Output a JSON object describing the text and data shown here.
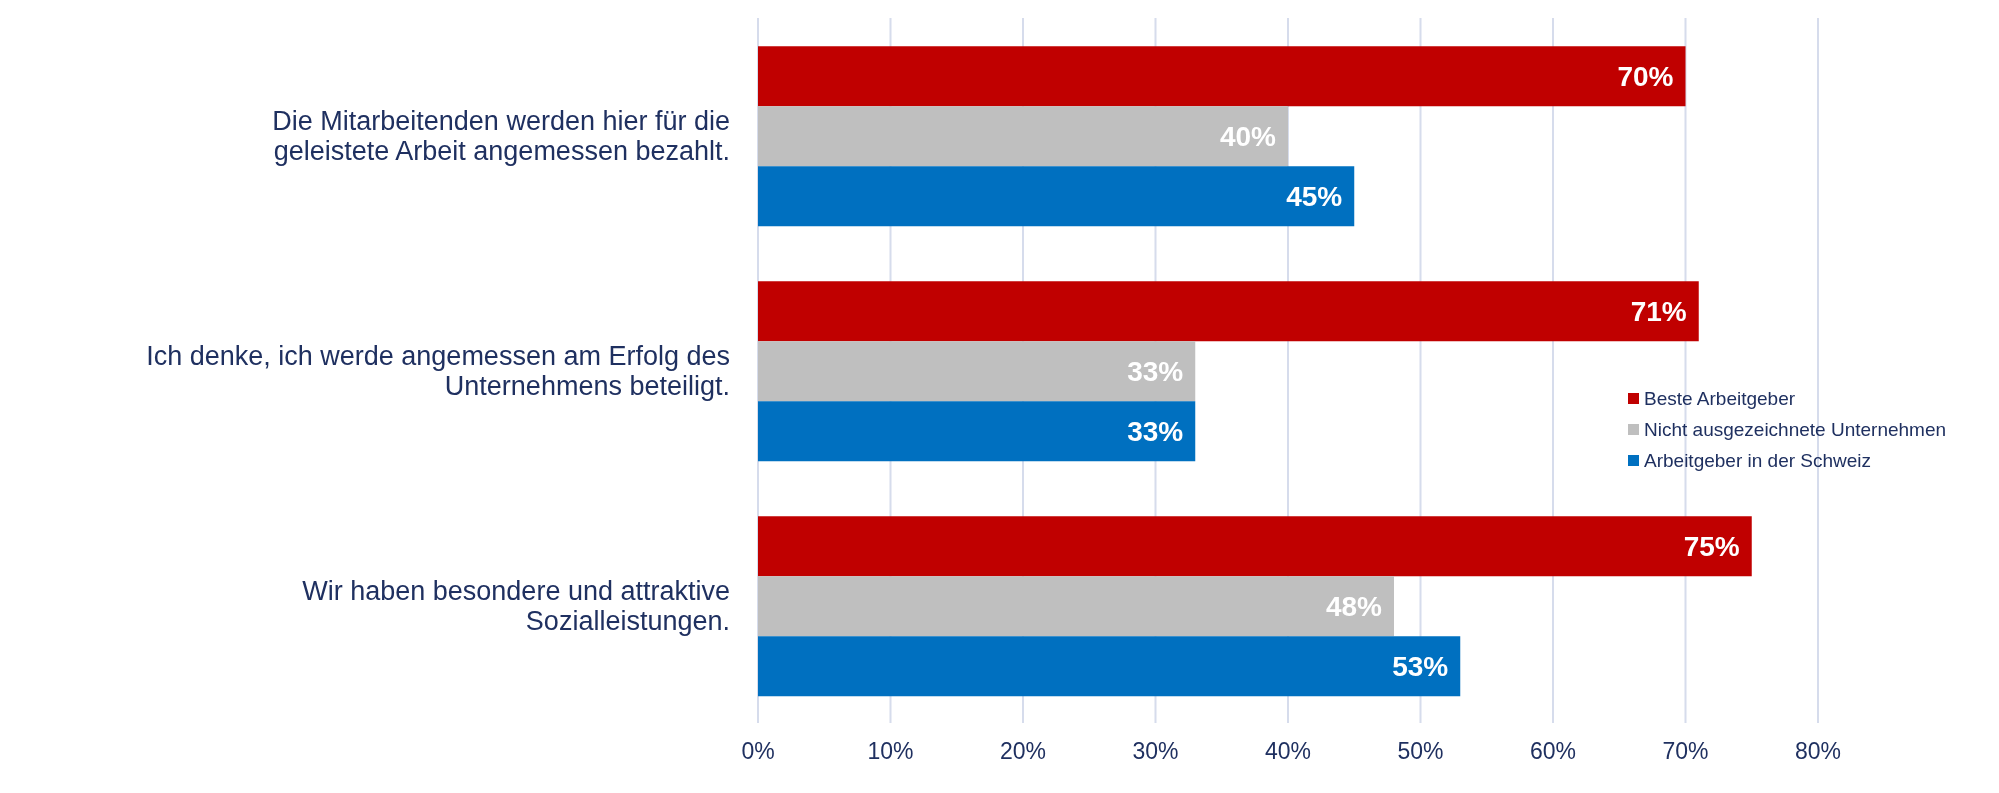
{
  "chart_data": {
    "type": "bar",
    "orientation": "horizontal",
    "categories": [
      "Die Mitarbeitenden werden hier für die geleistete Arbeit angemessen bezahlt.",
      "Ich denke, ich werde angemessen am Erfolg des Unternehmens beteiligt.",
      "Wir haben besondere und attraktive Sozialleistungen."
    ],
    "series": [
      {
        "name": "Beste Arbeitgeber",
        "color": "#c00000",
        "values": [
          70,
          71,
          75
        ],
        "value_labels": [
          "70%",
          "71%",
          "75%"
        ]
      },
      {
        "name": "Nicht ausgezeichnete Unternehmen",
        "color": "#bfbfbf",
        "values": [
          40,
          33,
          48
        ],
        "value_labels": [
          "40%",
          "33%",
          "48%"
        ]
      },
      {
        "name": "Arbeitgeber in der Schweiz",
        "color": "#0070c0",
        "values": [
          45,
          33,
          53
        ],
        "value_labels": [
          "45%",
          "33%",
          "53%"
        ]
      }
    ],
    "xlim": [
      0,
      80
    ],
    "xticks": [
      {
        "value": 0,
        "label": "0%"
      },
      {
        "value": 10,
        "label": "10%"
      },
      {
        "value": 20,
        "label": "20%"
      },
      {
        "value": 30,
        "label": "30%"
      },
      {
        "value": 40,
        "label": "40%"
      },
      {
        "value": 50,
        "label": "50%"
      },
      {
        "value": 60,
        "label": "60%"
      },
      {
        "value": 70,
        "label": "70%"
      },
      {
        "value": 80,
        "label": "80%"
      }
    ],
    "grid": "x",
    "legend": "right"
  }
}
